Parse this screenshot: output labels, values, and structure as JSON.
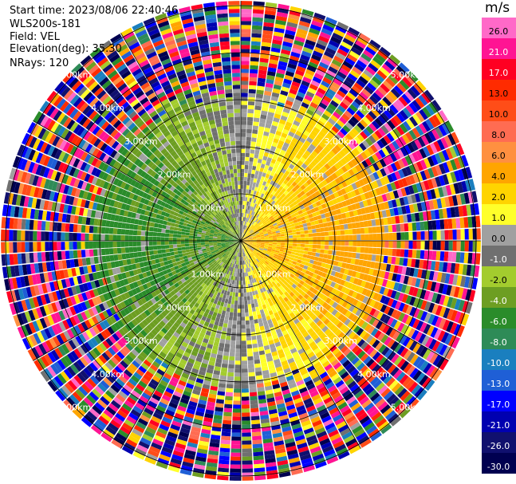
{
  "header": {
    "start_time": "Start time: 2023/08/06 22:40:46",
    "instrument": "WLS200s-181",
    "field": "Field: VEL",
    "elevation": "Elevation(deg): 35.30",
    "nrays": "NRays: 120"
  },
  "colorbar": {
    "unit": "m/s",
    "ticks": [
      "26.0",
      "21.0",
      "17.0",
      "13.0",
      "10.0",
      "8.0",
      "6.0",
      "4.0",
      "2.0",
      "1.0",
      "0.0",
      "-1.0",
      "-2.0",
      "-4.0",
      "-6.0",
      "-8.0",
      "-10.0",
      "-13.0",
      "-17.0",
      "-21.0",
      "-26.0",
      "-30.0"
    ],
    "colors": [
      "#ff69c8",
      "#ff1493",
      "#ff0022",
      "#ff2b00",
      "#ff4d18",
      "#ff6c52",
      "#ff9040",
      "#ffa500",
      "#ffd400",
      "#ffff2a",
      "#a0a0a0",
      "#707070",
      "#a3cc2e",
      "#6d9e22",
      "#2a8c2a",
      "#2e8b57",
      "#1a7fbf",
      "#1f5fd6",
      "#0000ff",
      "#0000b0",
      "#10106e",
      "#000050"
    ]
  },
  "chart_data": {
    "type": "heatmap",
    "projection": "polar PPI scan",
    "field": "VEL",
    "units": "m/s",
    "n_rays": 120,
    "elevation_deg": 35.3,
    "range_ring_labels": [
      "1.00km",
      "2.00km",
      "3.00km",
      "4.00km",
      "5.00km"
    ],
    "rings_km": [
      1,
      2,
      3,
      4,
      5
    ],
    "max_range_km": 5.1,
    "color_scale_min": -30,
    "color_scale_max": 26,
    "pattern": "east half positive 1 to 6 m/s (yellow-orange), west half negative -2 to -6 m/s (green), noisy multicolor beyond ~3 km"
  }
}
